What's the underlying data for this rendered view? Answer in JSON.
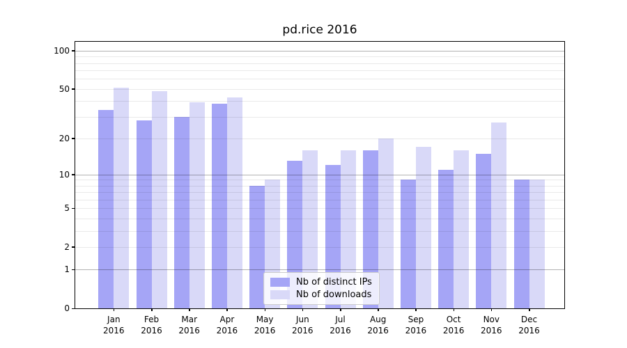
{
  "title": "pd.rice 2016",
  "colors": {
    "distinct_ips": "#a5a5f6",
    "downloads": "#d9d9f8",
    "grid_major": "rgba(0,0,0,0.30)",
    "grid_minor": "rgba(0,0,0,0.085)",
    "axis": "#000000",
    "legend_border": "#cccccc"
  },
  "y_axis": {
    "tick_values": [
      0,
      1,
      2,
      5,
      10,
      20,
      50,
      100
    ],
    "tick_labels": [
      "0",
      "1",
      "2",
      "5",
      "10",
      "20",
      "50",
      "100"
    ],
    "major_gridlines": [
      1,
      10,
      100
    ],
    "minor_gridlines": [
      2,
      3,
      4,
      5,
      6,
      7,
      8,
      9,
      20,
      30,
      40,
      50,
      60,
      70,
      80,
      90
    ],
    "scale": "log1p",
    "range": [
      0,
      118
    ]
  },
  "chart_data": {
    "type": "bar",
    "title": "pd.rice 2016",
    "categories": [
      "Jan 2016",
      "Feb 2016",
      "Mar 2016",
      "Apr 2016",
      "May 2016",
      "Jun 2016",
      "Jul 2016",
      "Aug 2016",
      "Sep 2016",
      "Oct 2016",
      "Nov 2016",
      "Dec 2016"
    ],
    "series": [
      {
        "name": "Nb of distinct IPs",
        "values": [
          34,
          28,
          30,
          38,
          8,
          13,
          12,
          16,
          9,
          11,
          15,
          9
        ]
      },
      {
        "name": "Nb of downloads",
        "values": [
          51,
          48,
          39,
          43,
          9,
          16,
          16,
          20,
          17,
          16,
          27,
          9
        ]
      }
    ],
    "xlabel": "",
    "ylabel": "",
    "yscale": "log1p",
    "ylim": [
      0,
      118
    ],
    "grid": true,
    "legend_position": "lower center"
  }
}
